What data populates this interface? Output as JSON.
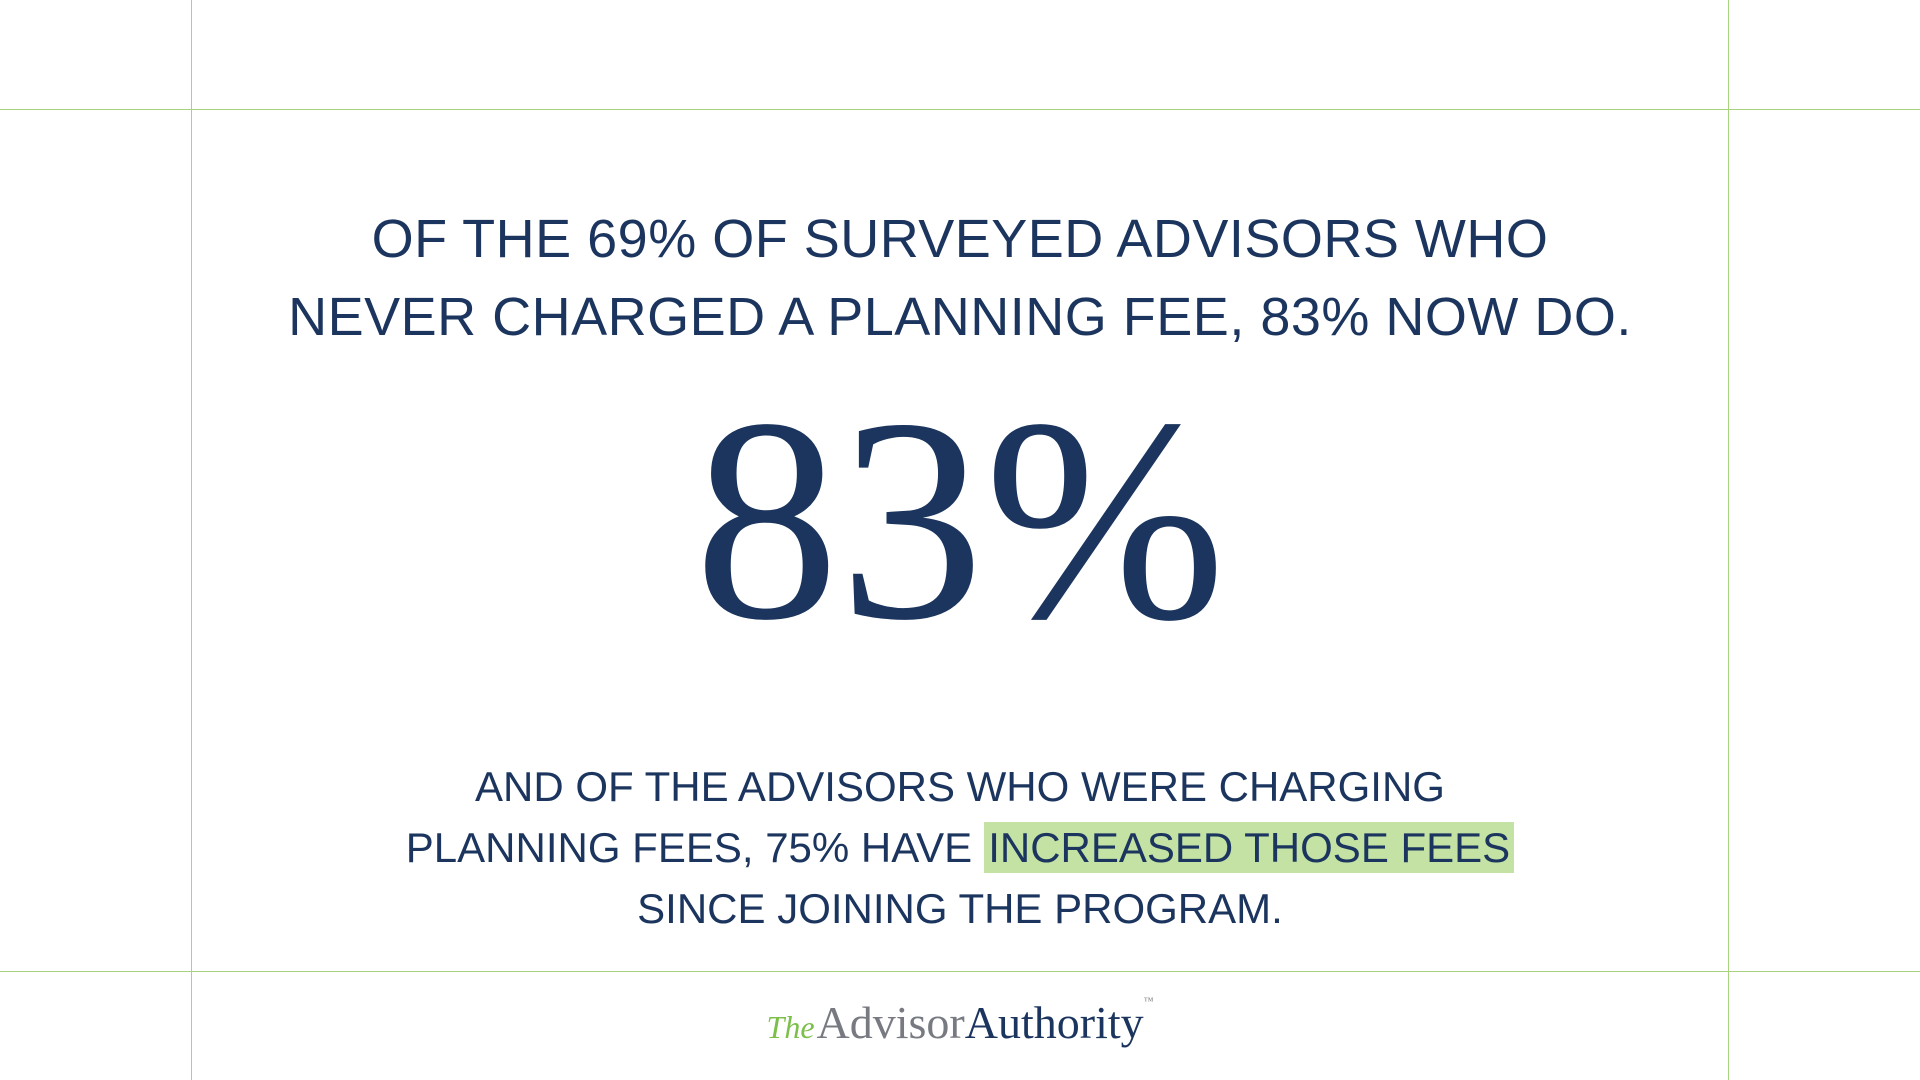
{
  "heading": {
    "lines": [
      "OF THE 69% OF SURVEYED ADVISORS WHO",
      "NEVER CHARGED A PLANNING FEE, 83% NOW DO."
    ]
  },
  "stat": "83%",
  "paragraph": {
    "line1": "AND OF THE ADVISORS WHO WERE CHARGING",
    "line2": "PLANNING FEES, 75% HAVE",
    "line2_highlight": "INCREASED THOSE FEES",
    "line3": "SINCE JOINING THE PROGRAM."
  },
  "logo": {
    "the": "The",
    "advisor": "Advisor",
    "authority": "Authority",
    "tm": "™"
  }
}
